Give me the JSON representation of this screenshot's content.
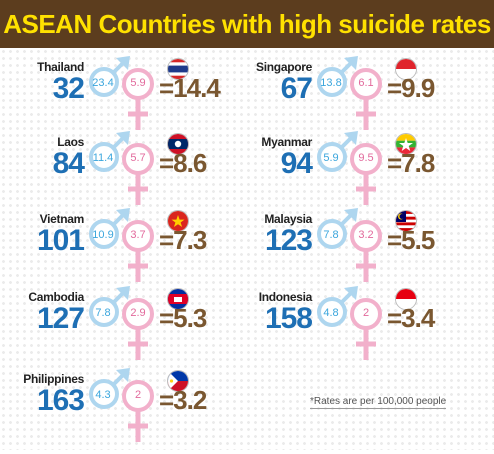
{
  "title": "ASEAN Countries with high suicide rates",
  "footnote": "*Rates are per 100,000 people",
  "colors": {
    "header_bg": "#5c3d1e",
    "title": "#ffe100",
    "rank": "#1e6fb4",
    "male": "#aed6ef",
    "female": "#f2b0cb",
    "ratio": "#7a5730"
  },
  "countries": [
    {
      "name": "Thailand",
      "rank": "32",
      "male": "23.4",
      "female": "5.9",
      "ratio": "=14.4",
      "flag": "thailand"
    },
    {
      "name": "Singapore",
      "rank": "67",
      "male": "13.8",
      "female": "6.1",
      "ratio": "=9.9",
      "flag": "singapore"
    },
    {
      "name": "Laos",
      "rank": "84",
      "male": "11.4",
      "female": "5.7",
      "ratio": "=8.6",
      "flag": "laos"
    },
    {
      "name": "Myanmar",
      "rank": "94",
      "male": "5.9",
      "female": "9.5",
      "ratio": "=7.8",
      "flag": "myanmar"
    },
    {
      "name": "Vietnam",
      "rank": "101",
      "male": "10.9",
      "female": "3.7",
      "ratio": "=7.3",
      "flag": "vietnam"
    },
    {
      "name": "Malaysia",
      "rank": "123",
      "male": "7.8",
      "female": "3.2",
      "ratio": "=5.5",
      "flag": "malaysia"
    },
    {
      "name": "Cambodia",
      "rank": "127",
      "male": "7.8",
      "female": "2.9",
      "ratio": "=5.3",
      "flag": "cambodia"
    },
    {
      "name": "Indonesia",
      "rank": "158",
      "male": "4.8",
      "female": "2",
      "ratio": "=3.4",
      "flag": "indonesia"
    },
    {
      "name": "Philippines",
      "rank": "163",
      "male": "4.3",
      "female": "2",
      "ratio": "=3.2",
      "flag": "philippines"
    }
  ]
}
